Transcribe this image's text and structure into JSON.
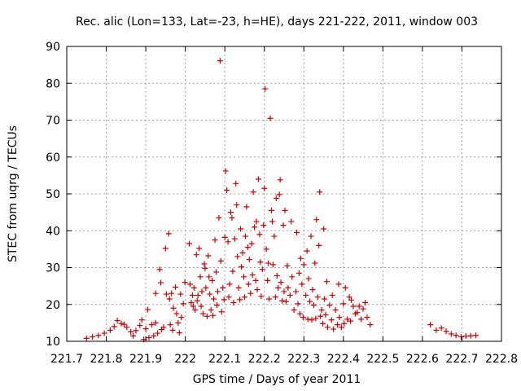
{
  "chart_data": {
    "type": "scatter",
    "title": "Rec. alic (Lon=133, Lat=-23, h=HE), days 221-222, 2011, window 003",
    "xlabel": "GPS time / Days of year 2011",
    "ylabel": "STEC from uqrg / TECUs",
    "xlim": [
      221.7,
      222.8
    ],
    "ylim": [
      10,
      90
    ],
    "xticks": [
      221.7,
      221.8,
      221.9,
      222,
      222.1,
      222.2,
      222.3,
      222.4,
      222.5,
      222.6,
      222.7,
      222.8
    ],
    "xtick_labels": [
      "221.7",
      "221.8",
      "221.9",
      "222",
      "222.1",
      "222.2",
      "222.3",
      "222.4",
      "222.5",
      "222.6",
      "222.7",
      "222.8"
    ],
    "yticks": [
      10,
      20,
      30,
      40,
      50,
      60,
      70,
      80,
      90
    ],
    "ytick_labels": [
      "10",
      "20",
      "30",
      "40",
      "50",
      "60",
      "70",
      "80",
      "90"
    ],
    "grid": true,
    "legend": "none",
    "marker": "plus",
    "color": "#cc0000",
    "points": [
      [
        221.75,
        10.8
      ],
      [
        221.765,
        11.2
      ],
      [
        221.78,
        11.6
      ],
      [
        221.795,
        12.2
      ],
      [
        221.81,
        13.0
      ],
      [
        221.82,
        14.0
      ],
      [
        221.828,
        15.6
      ],
      [
        221.838,
        14.8
      ],
      [
        221.845,
        14.6
      ],
      [
        221.852,
        13.8
      ],
      [
        221.862,
        12.6
      ],
      [
        221.868,
        11.5
      ],
      [
        221.875,
        12.9
      ],
      [
        221.885,
        14.3
      ],
      [
        221.89,
        15.8
      ],
      [
        221.895,
        10.5
      ],
      [
        221.9,
        13.4
      ],
      [
        221.905,
        18.6
      ],
      [
        221.908,
        11.0
      ],
      [
        221.915,
        14.5
      ],
      [
        221.92,
        11.5
      ],
      [
        221.925,
        15.0
      ],
      [
        221.925,
        23.0
      ],
      [
        221.93,
        12.2
      ],
      [
        221.935,
        29.5
      ],
      [
        221.938,
        25.9
      ],
      [
        221.94,
        13.2
      ],
      [
        221.945,
        13.8
      ],
      [
        221.95,
        35.2
      ],
      [
        221.952,
        22.8
      ],
      [
        221.958,
        39.2
      ],
      [
        221.96,
        21.5
      ],
      [
        221.962,
        14.5
      ],
      [
        221.965,
        23.0
      ],
      [
        221.968,
        13.0
      ],
      [
        221.97,
        19.0
      ],
      [
        221.975,
        24.7
      ],
      [
        221.978,
        17.5
      ],
      [
        221.982,
        15.0
      ],
      [
        221.985,
        12.3
      ],
      [
        221.988,
        22.8
      ],
      [
        221.99,
        16.5
      ],
      [
        221.995,
        20.2
      ],
      [
        221.999,
        26.0
      ],
      [
        222.01,
        36.5
      ],
      [
        222.012,
        25.5
      ],
      [
        222.015,
        20.5
      ],
      [
        222.018,
        22.5
      ],
      [
        222.02,
        19.5
      ],
      [
        222.022,
        24.5
      ],
      [
        222.025,
        18.5
      ],
      [
        222.028,
        33.5
      ],
      [
        222.03,
        21.0
      ],
      [
        222.032,
        22.5
      ],
      [
        222.035,
        35.2
      ],
      [
        222.038,
        27.5
      ],
      [
        222.04,
        19.5
      ],
      [
        222.042,
        23.5
      ],
      [
        222.045,
        17.5
      ],
      [
        222.048,
        31.0
      ],
      [
        222.05,
        29.8
      ],
      [
        222.052,
        24.5
      ],
      [
        222.055,
        16.8
      ],
      [
        222.058,
        33.2
      ],
      [
        222.06,
        27.5
      ],
      [
        222.062,
        22.8
      ],
      [
        222.065,
        18.5
      ],
      [
        222.068,
        26.5
      ],
      [
        222.07,
        17.0
      ],
      [
        222.072,
        21.5
      ],
      [
        222.075,
        37.5
      ],
      [
        222.078,
        28.8
      ],
      [
        222.08,
        19.8
      ],
      [
        222.082,
        23.5
      ],
      [
        222.085,
        43.5
      ],
      [
        222.088,
        86.1
      ],
      [
        222.09,
        31.8
      ],
      [
        222.092,
        18.0
      ],
      [
        222.095,
        24.5
      ],
      [
        222.098,
        21.3
      ],
      [
        222.1,
        38.2
      ],
      [
        222.102,
        56.2
      ],
      [
        222.105,
        51.0
      ],
      [
        222.108,
        37.0
      ],
      [
        222.11,
        22.0
      ],
      [
        222.112,
        25.5
      ],
      [
        222.115,
        45.0
      ],
      [
        222.118,
        43.5
      ],
      [
        222.12,
        29.0
      ],
      [
        222.122,
        20.5
      ],
      [
        222.125,
        37.8
      ],
      [
        222.128,
        52.8
      ],
      [
        222.13,
        47.0
      ],
      [
        222.132,
        33.0
      ],
      [
        222.135,
        24.5
      ],
      [
        222.138,
        21.3
      ],
      [
        222.14,
        40.5
      ],
      [
        222.142,
        30.2
      ],
      [
        222.145,
        34.0
      ],
      [
        222.148,
        27.5
      ],
      [
        222.15,
        22.0
      ],
      [
        222.152,
        38.5
      ],
      [
        222.155,
        46.5
      ],
      [
        222.158,
        35.5
      ],
      [
        222.16,
        25.5
      ],
      [
        222.162,
        32.2
      ],
      [
        222.165,
        23.0
      ],
      [
        222.168,
        36.5
      ],
      [
        222.17,
        28.0
      ],
      [
        222.172,
        50.5
      ],
      [
        222.175,
        41.0
      ],
      [
        222.178,
        26.5
      ],
      [
        222.18,
        42.5
      ],
      [
        222.182,
        24.0
      ],
      [
        222.185,
        54.0
      ],
      [
        222.188,
        39.0
      ],
      [
        222.19,
        31.5
      ],
      [
        222.192,
        22.2
      ],
      [
        222.195,
        29.5
      ],
      [
        222.198,
        41.5
      ],
      [
        222.2,
        51.5
      ],
      [
        222.202,
        78.5
      ],
      [
        222.205,
        35.0
      ],
      [
        222.208,
        26.5
      ],
      [
        222.21,
        31.2
      ],
      [
        222.212,
        21.5
      ],
      [
        222.215,
        70.5
      ],
      [
        222.218,
        45.5
      ],
      [
        222.22,
        42.5
      ],
      [
        222.222,
        30.8
      ],
      [
        222.225,
        38.5
      ],
      [
        222.228,
        22.0
      ],
      [
        222.23,
        48.8
      ],
      [
        222.232,
        27.8
      ],
      [
        222.235,
        24.5
      ],
      [
        222.238,
        49.8
      ],
      [
        222.24,
        53.8
      ],
      [
        222.242,
        26.0
      ],
      [
        222.245,
        21.0
      ],
      [
        222.248,
        41.5
      ],
      [
        222.25,
        23.5
      ],
      [
        222.252,
        45.5
      ],
      [
        222.255,
        20.8
      ],
      [
        222.258,
        30.5
      ],
      [
        222.26,
        24.5
      ],
      [
        222.265,
        22.5
      ],
      [
        222.268,
        42.5
      ],
      [
        222.27,
        27.5
      ],
      [
        222.275,
        18.5
      ],
      [
        222.28,
        23.5
      ],
      [
        222.282,
        39.5
      ],
      [
        222.285,
        20.2
      ],
      [
        222.288,
        28.5
      ],
      [
        222.29,
        17.5
      ],
      [
        222.292,
        32.5
      ],
      [
        222.295,
        25.5
      ],
      [
        222.298,
        16.5
      ],
      [
        222.3,
        30.8
      ],
      [
        222.305,
        22.5
      ],
      [
        222.308,
        34.5
      ],
      [
        222.31,
        16.0
      ],
      [
        222.312,
        27.0
      ],
      [
        222.315,
        20.8
      ],
      [
        222.318,
        38.5
      ],
      [
        222.32,
        15.8
      ],
      [
        222.322,
        24.0
      ],
      [
        222.325,
        19.8
      ],
      [
        222.328,
        31.2
      ],
      [
        222.33,
        16.2
      ],
      [
        222.332,
        43.0
      ],
      [
        222.335,
        22.0
      ],
      [
        222.338,
        36.0
      ],
      [
        222.34,
        50.5
      ],
      [
        222.342,
        16.8
      ],
      [
        222.345,
        18.5
      ],
      [
        222.348,
        14.8
      ],
      [
        222.35,
        40.5
      ],
      [
        222.352,
        21.5
      ],
      [
        222.355,
        17.2
      ],
      [
        222.358,
        26.2
      ],
      [
        222.36,
        13.8
      ],
      [
        222.365,
        19.8
      ],
      [
        222.37,
        15.8
      ],
      [
        222.372,
        22.5
      ],
      [
        222.375,
        13.3
      ],
      [
        222.38,
        18.5
      ],
      [
        222.385,
        14.5
      ],
      [
        222.388,
        25.5
      ],
      [
        222.39,
        16.5
      ],
      [
        222.395,
        13.8
      ],
      [
        222.4,
        20.2
      ],
      [
        222.402,
        14.8
      ],
      [
        222.405,
        24.5
      ],
      [
        222.41,
        16.0
      ],
      [
        222.415,
        22.0
      ],
      [
        222.418,
        15.5
      ],
      [
        222.42,
        21.2
      ],
      [
        222.425,
        19.5
      ],
      [
        222.43,
        17.5
      ],
      [
        222.435,
        17.8
      ],
      [
        222.44,
        19.5
      ],
      [
        222.445,
        16.0
      ],
      [
        222.45,
        18.8
      ],
      [
        222.455,
        20.5
      ],
      [
        222.46,
        16.5
      ],
      [
        222.468,
        14.5
      ],
      [
        222.62,
        14.5
      ],
      [
        222.635,
        13.0
      ],
      [
        222.648,
        13.6
      ],
      [
        222.66,
        12.7
      ],
      [
        222.673,
        12.0
      ],
      [
        222.685,
        11.6
      ],
      [
        222.698,
        11.2
      ],
      [
        222.71,
        11.4
      ],
      [
        222.722,
        11.5
      ],
      [
        222.735,
        11.6
      ]
    ]
  }
}
